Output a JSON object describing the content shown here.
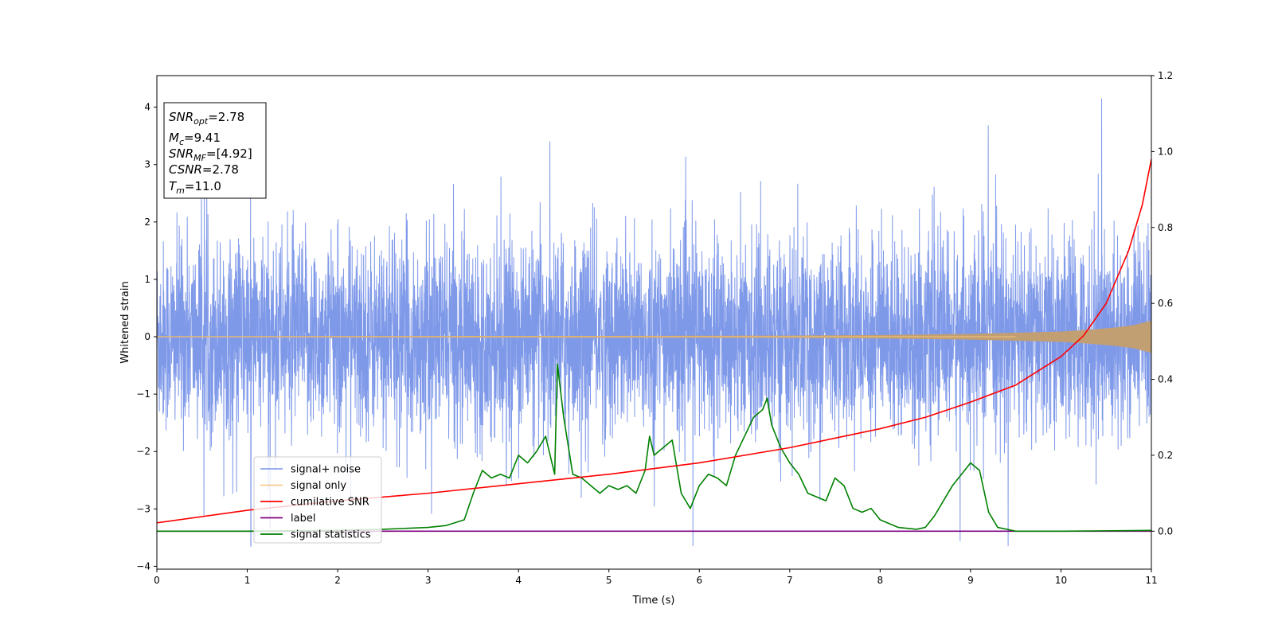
{
  "chart_data": {
    "type": "line",
    "title": "",
    "xlabel": "Time (s)",
    "ylabel": "Whitened strain",
    "xlim": [
      0,
      11
    ],
    "ylim": [
      -4.05,
      4.55
    ],
    "y2lim": [
      -0.1,
      1.2
    ],
    "x_ticks": [
      0,
      1,
      2,
      3,
      4,
      5,
      6,
      7,
      8,
      9,
      10,
      11
    ],
    "y_ticks": [
      -4,
      -3,
      -2,
      -1,
      0,
      1,
      2,
      3,
      4
    ],
    "y2_ticks": [
      "0.0",
      "0.2",
      "0.4",
      "0.6",
      "0.8",
      "1.0",
      "1.2"
    ],
    "grid": false,
    "legend_position": "lower-left",
    "info_box": {
      "snr_opt_label": "SNR",
      "snr_opt_sub": "opt",
      "snr_opt_value": "=2.78",
      "mc_label": "M",
      "mc_sub": "c",
      "mc_value": "=9.41",
      "snr_mf_label": "SNR",
      "snr_mf_sub": "MF",
      "snr_mf_value": "=[4.92]",
      "csnr_label": "CSNR",
      "csnr_value": "=2.78",
      "tm_label": "T",
      "tm_sub": "m",
      "tm_value": "=11.0"
    },
    "series": [
      {
        "name": "signal+ noise",
        "color": "#7893e8",
        "axis": "left",
        "kind": "noise",
        "envelope_sigma": 1.0,
        "peak_high": 4.15,
        "peak_low": -3.65
      },
      {
        "name": "signal only",
        "color": "#f5c47a",
        "fill_color": "#c19f72",
        "axis": "left",
        "kind": "chirp",
        "x": [
          0,
          5,
          7,
          8,
          9,
          9.5,
          10,
          10.3,
          10.6,
          10.8,
          11
        ],
        "envelope": [
          0.01,
          0.015,
          0.02,
          0.03,
          0.05,
          0.07,
          0.09,
          0.12,
          0.16,
          0.2,
          0.28
        ]
      },
      {
        "name": "cumilative SNR",
        "color": "#ff0000",
        "axis": "right",
        "x": [
          0,
          1,
          2,
          3,
          4,
          5,
          6,
          7,
          7.5,
          8,
          8.5,
          9,
          9.5,
          10,
          10.25,
          10.5,
          10.75,
          10.9,
          11
        ],
        "values": [
          0.022,
          0.055,
          0.08,
          0.1,
          0.125,
          0.15,
          0.18,
          0.22,
          0.245,
          0.27,
          0.3,
          0.34,
          0.385,
          0.46,
          0.515,
          0.6,
          0.74,
          0.86,
          0.98
        ]
      },
      {
        "name": "label",
        "color": "#800080",
        "axis": "right",
        "x": [
          0,
          11
        ],
        "values": [
          0.0,
          0.0
        ]
      },
      {
        "name": "signal statistics",
        "color": "#008000",
        "axis": "right",
        "x": [
          0,
          1,
          2,
          2.5,
          3,
          3.2,
          3.4,
          3.5,
          3.6,
          3.7,
          3.8,
          3.9,
          4.0,
          4.1,
          4.2,
          4.3,
          4.4,
          4.43,
          4.5,
          4.6,
          4.7,
          4.8,
          4.9,
          5.0,
          5.1,
          5.2,
          5.3,
          5.4,
          5.45,
          5.5,
          5.6,
          5.7,
          5.8,
          5.9,
          6.0,
          6.1,
          6.2,
          6.3,
          6.4,
          6.5,
          6.6,
          6.7,
          6.75,
          6.8,
          6.9,
          7.0,
          7.1,
          7.2,
          7.4,
          7.5,
          7.6,
          7.7,
          7.8,
          7.9,
          8.0,
          8.2,
          8.4,
          8.5,
          8.6,
          8.8,
          9.0,
          9.1,
          9.2,
          9.3,
          9.5,
          10,
          11
        ],
        "values": [
          0.0,
          0.0,
          0.002,
          0.005,
          0.01,
          0.015,
          0.03,
          0.1,
          0.16,
          0.14,
          0.15,
          0.14,
          0.2,
          0.18,
          0.21,
          0.25,
          0.15,
          0.44,
          0.3,
          0.15,
          0.14,
          0.12,
          0.1,
          0.12,
          0.11,
          0.12,
          0.1,
          0.16,
          0.25,
          0.2,
          0.22,
          0.24,
          0.1,
          0.06,
          0.12,
          0.15,
          0.14,
          0.12,
          0.2,
          0.25,
          0.3,
          0.32,
          0.35,
          0.28,
          0.22,
          0.18,
          0.15,
          0.1,
          0.08,
          0.14,
          0.12,
          0.06,
          0.05,
          0.06,
          0.03,
          0.01,
          0.005,
          0.01,
          0.04,
          0.12,
          0.18,
          0.16,
          0.05,
          0.01,
          0.0,
          0.0,
          0.002
        ]
      }
    ]
  }
}
